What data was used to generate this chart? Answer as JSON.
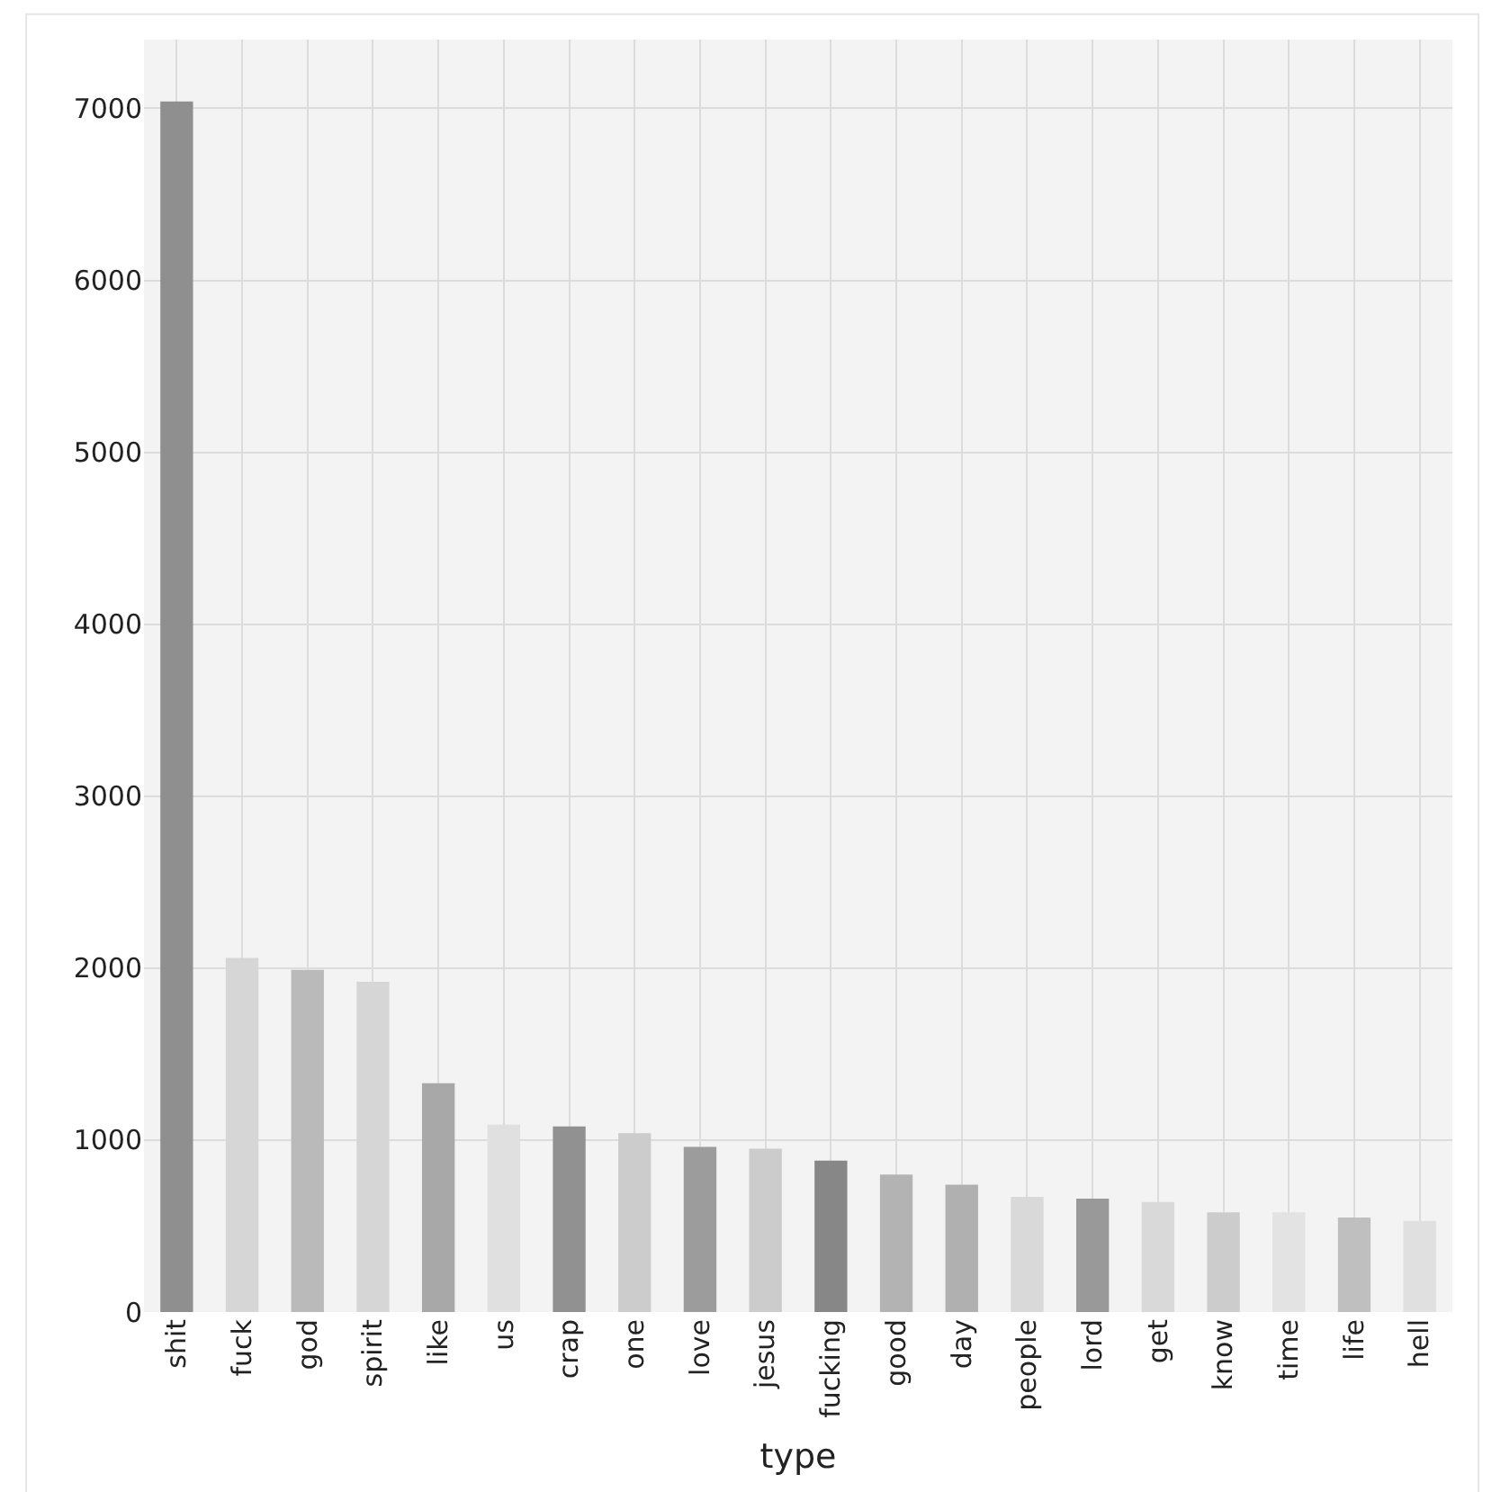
{
  "chart_data": {
    "type": "bar",
    "xlabel": "type",
    "categories": [
      "shit",
      "fuck",
      "god",
      "spirit",
      "like",
      "us",
      "crap",
      "one",
      "love",
      "jesus",
      "fucking",
      "good",
      "day",
      "people",
      "lord",
      "get",
      "know",
      "time",
      "life",
      "hell"
    ],
    "values": [
      7040,
      2060,
      1990,
      1920,
      1330,
      1090,
      1080,
      1040,
      960,
      950,
      880,
      800,
      740,
      670,
      660,
      640,
      580,
      580,
      550,
      530
    ],
    "colors": [
      "#8f8f8f",
      "#d6d6d6",
      "#bababa",
      "#d6d6d6",
      "#a8a8a8",
      "#e0e0e0",
      "#919191",
      "#cccccc",
      "#9c9c9c",
      "#cccccc",
      "#878787",
      "#b3b3b3",
      "#b0b0b0",
      "#d9d9d9",
      "#999999",
      "#d9d9d9",
      "#cccccc",
      "#e3e3e3",
      "#bfbfbf",
      "#e0e0e0"
    ],
    "ylim": [
      0,
      7400
    ],
    "yticks": [
      0,
      1000,
      2000,
      3000,
      4000,
      5000,
      6000,
      7000
    ],
    "grid": true
  }
}
